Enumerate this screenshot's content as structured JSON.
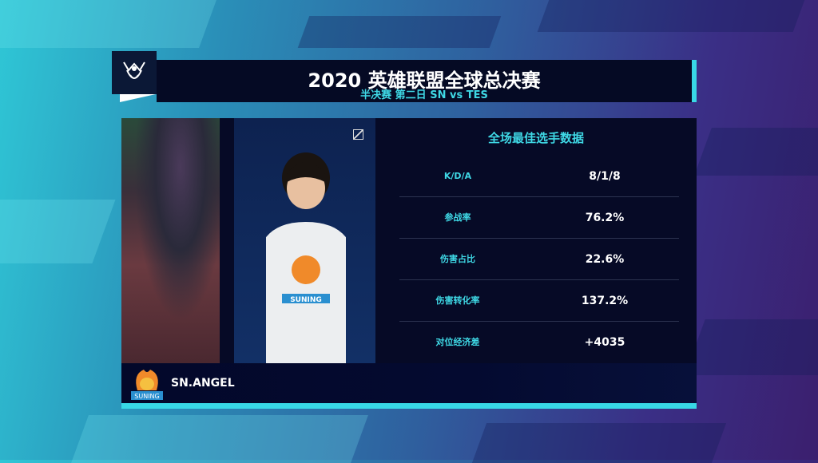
{
  "header": {
    "title": "2020 英雄联盟全球总决赛",
    "subtitle": "半决赛 第二日   SN vs TES"
  },
  "logo": {
    "name": "worlds-trophy-logo"
  },
  "stats": {
    "title": "全场最佳选手数据",
    "rows": [
      {
        "label": "K/D/A",
        "value": "8/1/8"
      },
      {
        "label": "参战率",
        "value": "76.2%"
      },
      {
        "label": "伤害占比",
        "value": "22.6%"
      },
      {
        "label": "伤害转化率",
        "value": "137.2%"
      },
      {
        "label": "对位经济差",
        "value": "+4035"
      }
    ]
  },
  "player": {
    "name": "SN.ANGEL",
    "team_logo_text": "SUNING",
    "jersey_text": "SUNING"
  },
  "colors": {
    "accent": "#38d8e6",
    "panel": "#060a26",
    "label": "#3fd9e6"
  }
}
